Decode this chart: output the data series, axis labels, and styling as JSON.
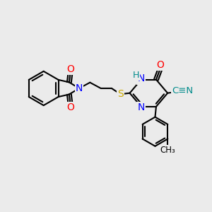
{
  "bg_color": "#ebebeb",
  "bond_color": "#000000",
  "bond_width": 1.5,
  "atom_colors": {
    "N": "#0000ff",
    "O": "#ff0000",
    "S": "#ccaa00",
    "C": "#000000",
    "H": "#008b8b",
    "CN_label": "#008b8b"
  },
  "font_size_atoms": 9
}
